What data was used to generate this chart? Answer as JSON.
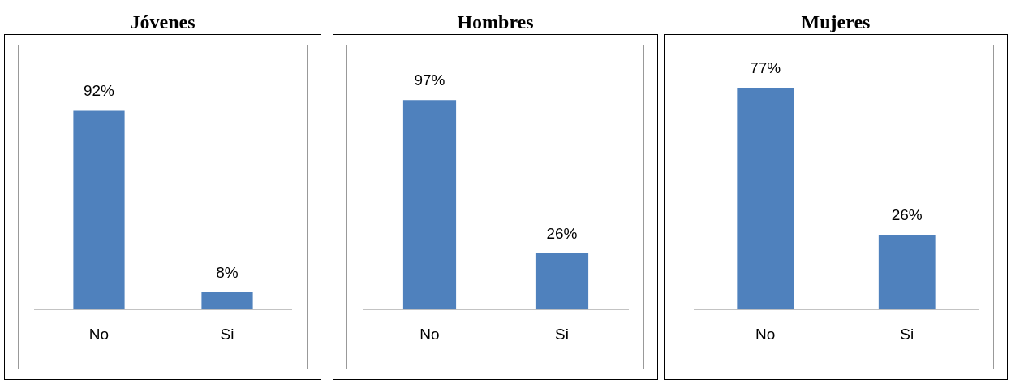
{
  "chart_data": [
    {
      "type": "bar",
      "title": "Jóvenes",
      "categories": [
        "No",
        "Si"
      ],
      "values": [
        92,
        8
      ],
      "value_labels": [
        "92%",
        "8%"
      ],
      "color": "#4f81bd",
      "tick_labels": "x",
      "grid": false,
      "legend": false
    },
    {
      "type": "bar",
      "title": "Hombres",
      "categories": [
        "No",
        "Si"
      ],
      "values": [
        97,
        26
      ],
      "value_labels": [
        "97%",
        "26%"
      ],
      "color": "#4f81bd",
      "tick_labels": "x",
      "grid": false,
      "legend": false
    },
    {
      "type": "bar",
      "title": "Mujeres",
      "categories": [
        "No",
        "Si"
      ],
      "values": [
        77,
        26
      ],
      "value_labels": [
        "77%",
        "26%"
      ],
      "color": "#4f81bd",
      "tick_labels": "x",
      "grid": false,
      "legend": false
    }
  ]
}
